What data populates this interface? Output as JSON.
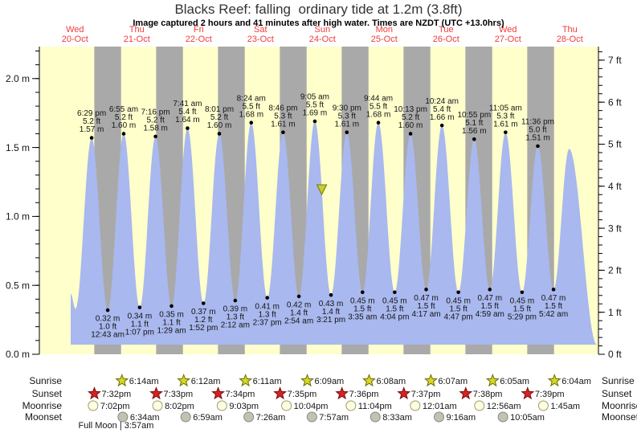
{
  "title": "Blacks Reef: falling  ordinary tide at 1.2m (3.8ft)",
  "subtitle": "Image captured 2 hours and 41 minutes after high water. Times are NZDT (UTC +13.0hrs)",
  "colors": {
    "day_band": "#ffffcc",
    "night_band": "#a9a9a9",
    "water": "#a9b8ee",
    "day_label": "#f03b3b",
    "axis": "#000000",
    "text": "#151515",
    "sunrise_fill": "#d6d62a",
    "sunrise_stroke": "#6b6b00",
    "sunset_fill": "#d92121",
    "sunset_stroke": "#7a1010",
    "moonrise_fill": "#ffffdd",
    "moonrise_stroke": "#99997a",
    "moonset_fill": "#c2c2b4",
    "moonset_stroke": "#8a8a80",
    "marker_fill": "#c9cc33",
    "marker_stroke": "#81810e"
  },
  "chart_data": {
    "type": "area",
    "title": "Blacks Reef tide heights",
    "ylabel_left": "m",
    "ylabel_right": "ft",
    "y_axis_m": {
      "majors": [
        {
          "v": 0.0,
          "label": "0.0 m"
        },
        {
          "v": 0.5,
          "label": "0.5 m"
        },
        {
          "v": 1.0,
          "label": "1.0 m"
        },
        {
          "v": 1.5,
          "label": "1.5 m"
        },
        {
          "v": 2.0,
          "label": "2.0 m"
        }
      ],
      "minor_step": 0.1,
      "max": 2.2
    },
    "y_axis_ft": {
      "majors": [
        {
          "v": 0,
          "label": "0 ft"
        },
        {
          "v": 1,
          "label": "1 ft"
        },
        {
          "v": 2,
          "label": "2 ft"
        },
        {
          "v": 3,
          "label": "3 ft"
        },
        {
          "v": 4,
          "label": "4 ft"
        },
        {
          "v": 5,
          "label": "5 ft"
        },
        {
          "v": 6,
          "label": "6 ft"
        },
        {
          "v": 7,
          "label": "7 ft"
        }
      ],
      "minor_step": 0.2,
      "max": 7.2
    },
    "days": [
      {
        "name": "Wed",
        "date": "20-Oct"
      },
      {
        "name": "Thu",
        "date": "21-Oct"
      },
      {
        "name": "Fri",
        "date": "22-Oct"
      },
      {
        "name": "Sat",
        "date": "23-Oct"
      },
      {
        "name": "Sun",
        "date": "24-Oct"
      },
      {
        "name": "Mon",
        "date": "25-Oct"
      },
      {
        "name": "Tue",
        "date": "26-Oct"
      },
      {
        "name": "Wed",
        "date": "27-Oct"
      },
      {
        "name": "Thu",
        "date": "28-Oct"
      }
    ],
    "tides": [
      {
        "type": "low",
        "day": 0,
        "time": "12:13 pm",
        "m": 0.33,
        "labeled": false
      },
      {
        "type": "high",
        "day": 0,
        "time": "6:29 pm",
        "m": 1.57,
        "labeled": true,
        "labels": [
          "6:29 pm",
          "5.2 ft",
          "1.57 m"
        ]
      },
      {
        "type": "low",
        "day": 1,
        "time": "12:43 am",
        "m": 0.32,
        "labeled": true,
        "labels": [
          "0.32 m",
          "1.0 ft",
          "12:43 am"
        ]
      },
      {
        "type": "high",
        "day": 1,
        "time": "6:55 am",
        "m": 1.6,
        "labeled": true,
        "labels": [
          "6:55 am",
          "5.2 ft",
          "1.60 m"
        ]
      },
      {
        "type": "low",
        "day": 1,
        "time": "1:07 pm",
        "m": 0.34,
        "labeled": true,
        "labels": [
          "0.34 m",
          "1.1 ft",
          "1:07 pm"
        ]
      },
      {
        "type": "high",
        "day": 1,
        "time": "7:16 pm",
        "m": 1.58,
        "labeled": true,
        "labels": [
          "7:16 pm",
          "5.2 ft",
          "1.58 m"
        ]
      },
      {
        "type": "low",
        "day": 2,
        "time": "1:29 am",
        "m": 0.35,
        "labeled": true,
        "labels": [
          "0.35 m",
          "1.1 ft",
          "1:29 am"
        ]
      },
      {
        "type": "high",
        "day": 2,
        "time": "7:41 am",
        "m": 1.64,
        "labeled": true,
        "labels": [
          "7:41 am",
          "5.4 ft",
          "1.64 m"
        ]
      },
      {
        "type": "low",
        "day": 2,
        "time": "1:52 pm",
        "m": 0.37,
        "labeled": true,
        "labels": [
          "0.37 m",
          "1.2 ft",
          "1:52 pm"
        ]
      },
      {
        "type": "high",
        "day": 2,
        "time": "8:01 pm",
        "m": 1.6,
        "labeled": true,
        "labels": [
          "8:01 pm",
          "5.2 ft",
          "1.60 m"
        ]
      },
      {
        "type": "low",
        "day": 3,
        "time": "2:12 am",
        "m": 0.39,
        "labeled": true,
        "labels": [
          "0.39 m",
          "1.3 ft",
          "2:12 am"
        ]
      },
      {
        "type": "high",
        "day": 3,
        "time": "8:24 am",
        "m": 1.68,
        "labeled": true,
        "labels": [
          "8:24 am",
          "5.5 ft",
          "1.68 m"
        ]
      },
      {
        "type": "low",
        "day": 3,
        "time": "2:37 pm",
        "m": 0.41,
        "labeled": true,
        "labels": [
          "0.41 m",
          "1.3 ft",
          "2:37 pm"
        ]
      },
      {
        "type": "high",
        "day": 3,
        "time": "8:46 pm",
        "m": 1.61,
        "labeled": true,
        "labels": [
          "8:46 pm",
          "5.3 ft",
          "1.61 m"
        ]
      },
      {
        "type": "low",
        "day": 4,
        "time": "2:54 am",
        "m": 0.42,
        "labeled": true,
        "labels": [
          "0.42 m",
          "1.4 ft",
          "2:54 am"
        ]
      },
      {
        "type": "high",
        "day": 4,
        "time": "9:05 am",
        "m": 1.69,
        "labeled": true,
        "labels": [
          "9:05 am",
          "5.5 ft",
          "1.69 m"
        ]
      },
      {
        "type": "low",
        "day": 4,
        "time": "3:21 pm",
        "m": 0.43,
        "labeled": true,
        "labels": [
          "0.43 m",
          "1.4 ft",
          "3:21 pm"
        ]
      },
      {
        "type": "high",
        "day": 4,
        "time": "9:30 pm",
        "m": 1.61,
        "labeled": true,
        "labels": [
          "9:30 pm",
          "5.3 ft",
          "1.61 m"
        ]
      },
      {
        "type": "low",
        "day": 5,
        "time": "3:35 am",
        "m": 0.45,
        "labeled": true,
        "labels": [
          "0.45 m",
          "1.5 ft",
          "3:35 am"
        ]
      },
      {
        "type": "high",
        "day": 5,
        "time": "9:44 am",
        "m": 1.68,
        "labeled": true,
        "labels": [
          "9:44 am",
          "5.5 ft",
          "1.68 m"
        ]
      },
      {
        "type": "low",
        "day": 5,
        "time": "4:04 pm",
        "m": 0.45,
        "labeled": true,
        "labels": [
          "0.45 m",
          "1.5 ft",
          "4:04 pm"
        ]
      },
      {
        "type": "high",
        "day": 5,
        "time": "10:13 pm",
        "m": 1.6,
        "labeled": true,
        "labels": [
          "10:13 pm",
          "5.2 ft",
          "1.60 m"
        ]
      },
      {
        "type": "low",
        "day": 6,
        "time": "4:17 am",
        "m": 0.47,
        "labeled": true,
        "labels": [
          "0.47 m",
          "1.5 ft",
          "4:17 am"
        ]
      },
      {
        "type": "high",
        "day": 6,
        "time": "10:24 am",
        "m": 1.66,
        "labeled": true,
        "labels": [
          "10:24 am",
          "5.4 ft",
          "1.66 m"
        ]
      },
      {
        "type": "low",
        "day": 6,
        "time": "4:47 pm",
        "m": 0.45,
        "labeled": true,
        "labels": [
          "0.45 m",
          "1.5 ft",
          "4:47 pm"
        ]
      },
      {
        "type": "high",
        "day": 6,
        "time": "10:55 pm",
        "m": 1.56,
        "labeled": true,
        "labels": [
          "10:55 pm",
          "5.1 ft",
          "1.56 m"
        ]
      },
      {
        "type": "low",
        "day": 7,
        "time": "4:59 am",
        "m": 0.47,
        "labeled": true,
        "labels": [
          "0.47 m",
          "1.5 ft",
          "4:59 am"
        ]
      },
      {
        "type": "high",
        "day": 7,
        "time": "11:05 am",
        "m": 1.61,
        "labeled": true,
        "labels": [
          "11:05 am",
          "5.3 ft",
          "1.61 m"
        ]
      },
      {
        "type": "low",
        "day": 7,
        "time": "5:29 pm",
        "m": 0.45,
        "labeled": true,
        "labels": [
          "0.45 m",
          "1.5 ft",
          "5:29 pm"
        ]
      },
      {
        "type": "high",
        "day": 7,
        "time": "11:36 pm",
        "m": 1.51,
        "labeled": true,
        "labels": [
          "11:36 pm",
          "5.0 ft",
          "1.51 m"
        ]
      },
      {
        "type": "low",
        "day": 8,
        "time": "5:42 am",
        "m": 0.47,
        "labeled": true,
        "labels": [
          "0.47 m",
          "1.5 ft",
          "5:42 am"
        ]
      },
      {
        "type": "high",
        "day": 8,
        "time": "11:45 am",
        "m": 1.49,
        "labeled": false
      }
    ],
    "curve_start": {
      "day": 0,
      "time": "10:20 am",
      "m": 0.44
    },
    "curve_end": {
      "day": 8,
      "time": "10:30 pm",
      "m": 0.07
    },
    "current_marker": {
      "day": 4,
      "time": "11:46 am",
      "m": 1.2
    }
  },
  "astro": {
    "rows": [
      {
        "id": "sunrise",
        "label": "Sunrise",
        "icon": "sunrise-star-icon",
        "events": [
          {
            "day": 1,
            "time": "6:14am"
          },
          {
            "day": 2,
            "time": "6:12am"
          },
          {
            "day": 3,
            "time": "6:11am"
          },
          {
            "day": 4,
            "time": "6:09am"
          },
          {
            "day": 5,
            "time": "6:08am"
          },
          {
            "day": 6,
            "time": "6:07am"
          },
          {
            "day": 7,
            "time": "6:05am"
          },
          {
            "day": 8,
            "time": "6:04am"
          }
        ]
      },
      {
        "id": "sunset",
        "label": "Sunset",
        "icon": "sunset-star-icon",
        "events": [
          {
            "day": 0,
            "time": "7:32pm"
          },
          {
            "day": 1,
            "time": "7:33pm"
          },
          {
            "day": 2,
            "time": "7:34pm"
          },
          {
            "day": 3,
            "time": "7:35pm"
          },
          {
            "day": 4,
            "time": "7:36pm"
          },
          {
            "day": 5,
            "time": "7:37pm"
          },
          {
            "day": 6,
            "time": "7:38pm"
          },
          {
            "day": 7,
            "time": "7:39pm"
          }
        ]
      },
      {
        "id": "moonrise",
        "label": "Moonrise",
        "icon": "moonrise-icon",
        "events": [
          {
            "day": 0,
            "time": "7:02pm"
          },
          {
            "day": 1,
            "time": "8:02pm"
          },
          {
            "day": 2,
            "time": "9:03pm"
          },
          {
            "day": 3,
            "time": "10:04pm"
          },
          {
            "day": 4,
            "time": "11:04pm"
          },
          {
            "day": 6,
            "time": "12:01am"
          },
          {
            "day": 7,
            "time": "12:56am"
          },
          {
            "day": 8,
            "time": "1:45am"
          }
        ]
      },
      {
        "id": "moonset",
        "label": "Moonset",
        "icon": "moonset-icon",
        "events": [
          {
            "day": 1,
            "time": "6:34am"
          },
          {
            "day": 2,
            "time": "6:59am"
          },
          {
            "day": 3,
            "time": "7:26am"
          },
          {
            "day": 4,
            "time": "7:57am"
          },
          {
            "day": 5,
            "time": "8:33am"
          },
          {
            "day": 6,
            "time": "9:16am"
          },
          {
            "day": 7,
            "time": "10:05am"
          }
        ]
      }
    ],
    "full_moon": {
      "label": "Full Moon | 3:57am",
      "day": 1,
      "time": "3:57am"
    }
  }
}
